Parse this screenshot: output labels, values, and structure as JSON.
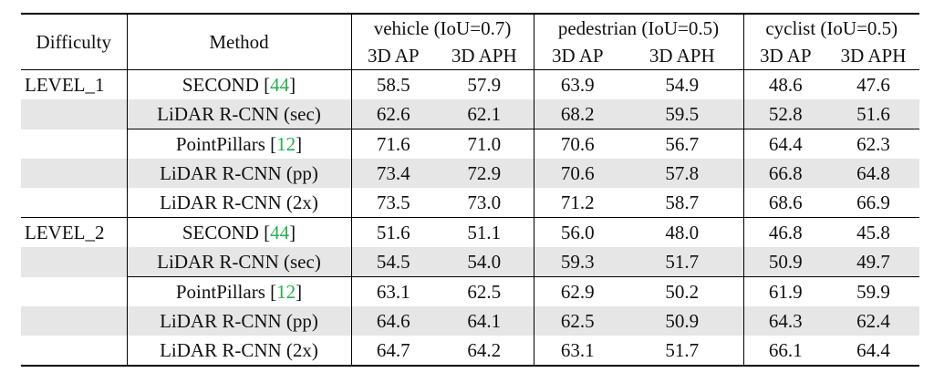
{
  "header": {
    "difficulty": "Difficulty",
    "method": "Method",
    "groups": [
      "vehicle (IoU=0.7)",
      "pedestrian (IoU=0.5)",
      "cyclist (IoU=0.5)"
    ],
    "metrics": [
      "3D AP",
      "3D APH",
      "3D AP",
      "3D APH",
      "3D AP",
      "3D APH"
    ]
  },
  "levels": [
    {
      "name": "LEVEL_1",
      "rows": [
        {
          "method": "SECOND ",
          "cite": "44",
          "v": [
            "58.5",
            "57.9",
            "63.9",
            "54.9",
            "48.6",
            "47.6"
          ]
        },
        {
          "method": "LiDAR R-CNN (sec)",
          "cite": "",
          "v": [
            "62.6",
            "62.1",
            "68.2",
            "59.5",
            "52.8",
            "51.6"
          ]
        },
        {
          "method": "PointPillars ",
          "cite": "12",
          "v": [
            "71.6",
            "71.0",
            "70.6",
            "56.7",
            "64.4",
            "62.3"
          ]
        },
        {
          "method": "LiDAR R-CNN (pp)",
          "cite": "",
          "v": [
            "73.4",
            "72.9",
            "70.6",
            "57.8",
            "66.8",
            "64.8"
          ]
        },
        {
          "method": "LiDAR R-CNN (2x)",
          "cite": "",
          "v": [
            "73.5",
            "73.0",
            "71.2",
            "58.7",
            "68.6",
            "66.9"
          ]
        }
      ]
    },
    {
      "name": "LEVEL_2",
      "rows": [
        {
          "method": "SECOND ",
          "cite": "44",
          "v": [
            "51.6",
            "51.1",
            "56.0",
            "48.0",
            "46.8",
            "45.8"
          ]
        },
        {
          "method": "LiDAR R-CNN (sec)",
          "cite": "",
          "v": [
            "54.5",
            "54.0",
            "59.3",
            "51.7",
            "50.9",
            "49.7"
          ]
        },
        {
          "method": "PointPillars ",
          "cite": "12",
          "v": [
            "63.1",
            "62.5",
            "62.9",
            "50.2",
            "61.9",
            "59.9"
          ]
        },
        {
          "method": "LiDAR R-CNN (pp)",
          "cite": "",
          "v": [
            "64.6",
            "64.1",
            "62.5",
            "50.9",
            "64.3",
            "62.4"
          ]
        },
        {
          "method": "LiDAR R-CNN (2x)",
          "cite": "",
          "v": [
            "64.7",
            "64.2",
            "63.1",
            "51.7",
            "66.1",
            "64.4"
          ]
        }
      ]
    }
  ]
}
